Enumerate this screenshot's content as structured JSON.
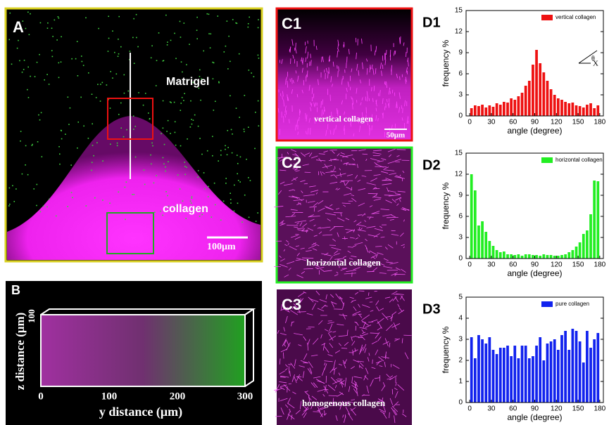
{
  "panel_a": {
    "label": "A",
    "matrigel": "Matrigel",
    "collagen": "collagen",
    "scale_bar": "100μm"
  },
  "panel_b": {
    "label": "B",
    "z_axis_label": "z distance (μm)",
    "y_axis_label": "y distance (μm)",
    "y_ticks": [
      0,
      100,
      200,
      300
    ],
    "z_tick": 100
  },
  "panel_c": [
    {
      "label": "C1",
      "caption": "vertical collagen",
      "scale_bar": "50μm"
    },
    {
      "label": "C2",
      "caption": "horizontal collagen"
    },
    {
      "label": "C3",
      "caption": "homogenous collagen"
    }
  ],
  "chart_data": [
    {
      "type": "histogram",
      "panel_label": "D1",
      "x_label": "angle (degree)",
      "y_label": "frequency %",
      "bins": [
        0,
        5,
        10,
        15,
        20,
        25,
        30,
        35,
        40,
        45,
        50,
        55,
        60,
        65,
        70,
        75,
        80,
        85,
        90,
        95,
        100,
        105,
        110,
        115,
        120,
        125,
        130,
        135,
        140,
        145,
        150,
        155,
        160,
        165,
        170,
        175,
        180
      ],
      "series": [
        {
          "name": "vertical collagen",
          "color": "#ee1111",
          "values": [
            1.1,
            1.5,
            1.4,
            1.6,
            1.2,
            1.5,
            1.3,
            1.8,
            1.6,
            2.0,
            1.9,
            2.5,
            2.3,
            2.8,
            3.3,
            4.3,
            5.0,
            7.3,
            9.4,
            7.5,
            6.2,
            5.0,
            3.8,
            3.0,
            2.5,
            2.3,
            2.0,
            1.8,
            1.9,
            1.5,
            1.4,
            1.2,
            1.6,
            1.8,
            1.1,
            1.5
          ]
        }
      ],
      "xlim": [
        -5,
        185
      ],
      "xticks": [
        0,
        30,
        60,
        90,
        120,
        150,
        180
      ],
      "ylim": [
        0,
        15
      ],
      "yticks": [
        0,
        3,
        6,
        9,
        12,
        15
      ],
      "legend": "upper right",
      "annotations": [
        "θ",
        "X"
      ]
    },
    {
      "type": "histogram",
      "panel_label": "D2",
      "x_label": "angle (degree)",
      "y_label": "frequency %",
      "bins": [
        0,
        5,
        10,
        15,
        20,
        25,
        30,
        35,
        40,
        45,
        50,
        55,
        60,
        65,
        70,
        75,
        80,
        85,
        90,
        95,
        100,
        105,
        110,
        115,
        120,
        125,
        130,
        135,
        140,
        145,
        150,
        155,
        160,
        165,
        170,
        175,
        180
      ],
      "series": [
        {
          "name": "horizontal collagen",
          "color": "#22ee22",
          "values": [
            12.0,
            9.7,
            4.7,
            5.3,
            3.8,
            2.5,
            1.8,
            1.2,
            0.9,
            1.0,
            0.6,
            0.6,
            0.5,
            0.6,
            0.4,
            0.6,
            0.6,
            0.5,
            0.5,
            0.4,
            0.6,
            0.5,
            0.5,
            0.4,
            0.4,
            0.5,
            0.6,
            0.9,
            1.2,
            1.7,
            2.3,
            3.5,
            4.0,
            6.3,
            11.1,
            11.0
          ]
        }
      ],
      "xlim": [
        -5,
        185
      ],
      "xticks": [
        0,
        30,
        60,
        90,
        120,
        150,
        180
      ],
      "ylim": [
        0,
        15
      ],
      "yticks": [
        0,
        3,
        6,
        9,
        12,
        15
      ],
      "legend": "upper right"
    },
    {
      "type": "histogram",
      "panel_label": "D3",
      "x_label": "angle (degree)",
      "y_label": "frequency %",
      "bins": [
        0,
        5,
        10,
        15,
        20,
        25,
        30,
        35,
        40,
        45,
        50,
        55,
        60,
        65,
        70,
        75,
        80,
        85,
        90,
        95,
        100,
        105,
        110,
        115,
        120,
        125,
        130,
        135,
        140,
        145,
        150,
        155,
        160,
        165,
        170,
        175,
        180
      ],
      "series": [
        {
          "name": "pure collagen",
          "color": "#1122ee",
          "values": [
            3.1,
            2.1,
            3.2,
            3.0,
            2.8,
            3.1,
            2.5,
            2.3,
            2.6,
            2.6,
            2.7,
            2.2,
            2.7,
            2.1,
            2.7,
            2.7,
            2.1,
            2.2,
            2.7,
            3.1,
            2.0,
            2.8,
            2.9,
            3.0,
            2.5,
            3.2,
            3.4,
            2.5,
            3.5,
            3.4,
            2.9,
            1.9,
            3.4,
            2.6,
            3.0,
            3.3
          ]
        }
      ],
      "xlim": [
        -5,
        185
      ],
      "xticks": [
        0,
        30,
        60,
        90,
        120,
        150,
        180
      ],
      "ylim": [
        0,
        5
      ],
      "yticks": [
        0,
        1,
        2,
        3,
        4,
        5
      ],
      "legend": "upper right"
    }
  ]
}
